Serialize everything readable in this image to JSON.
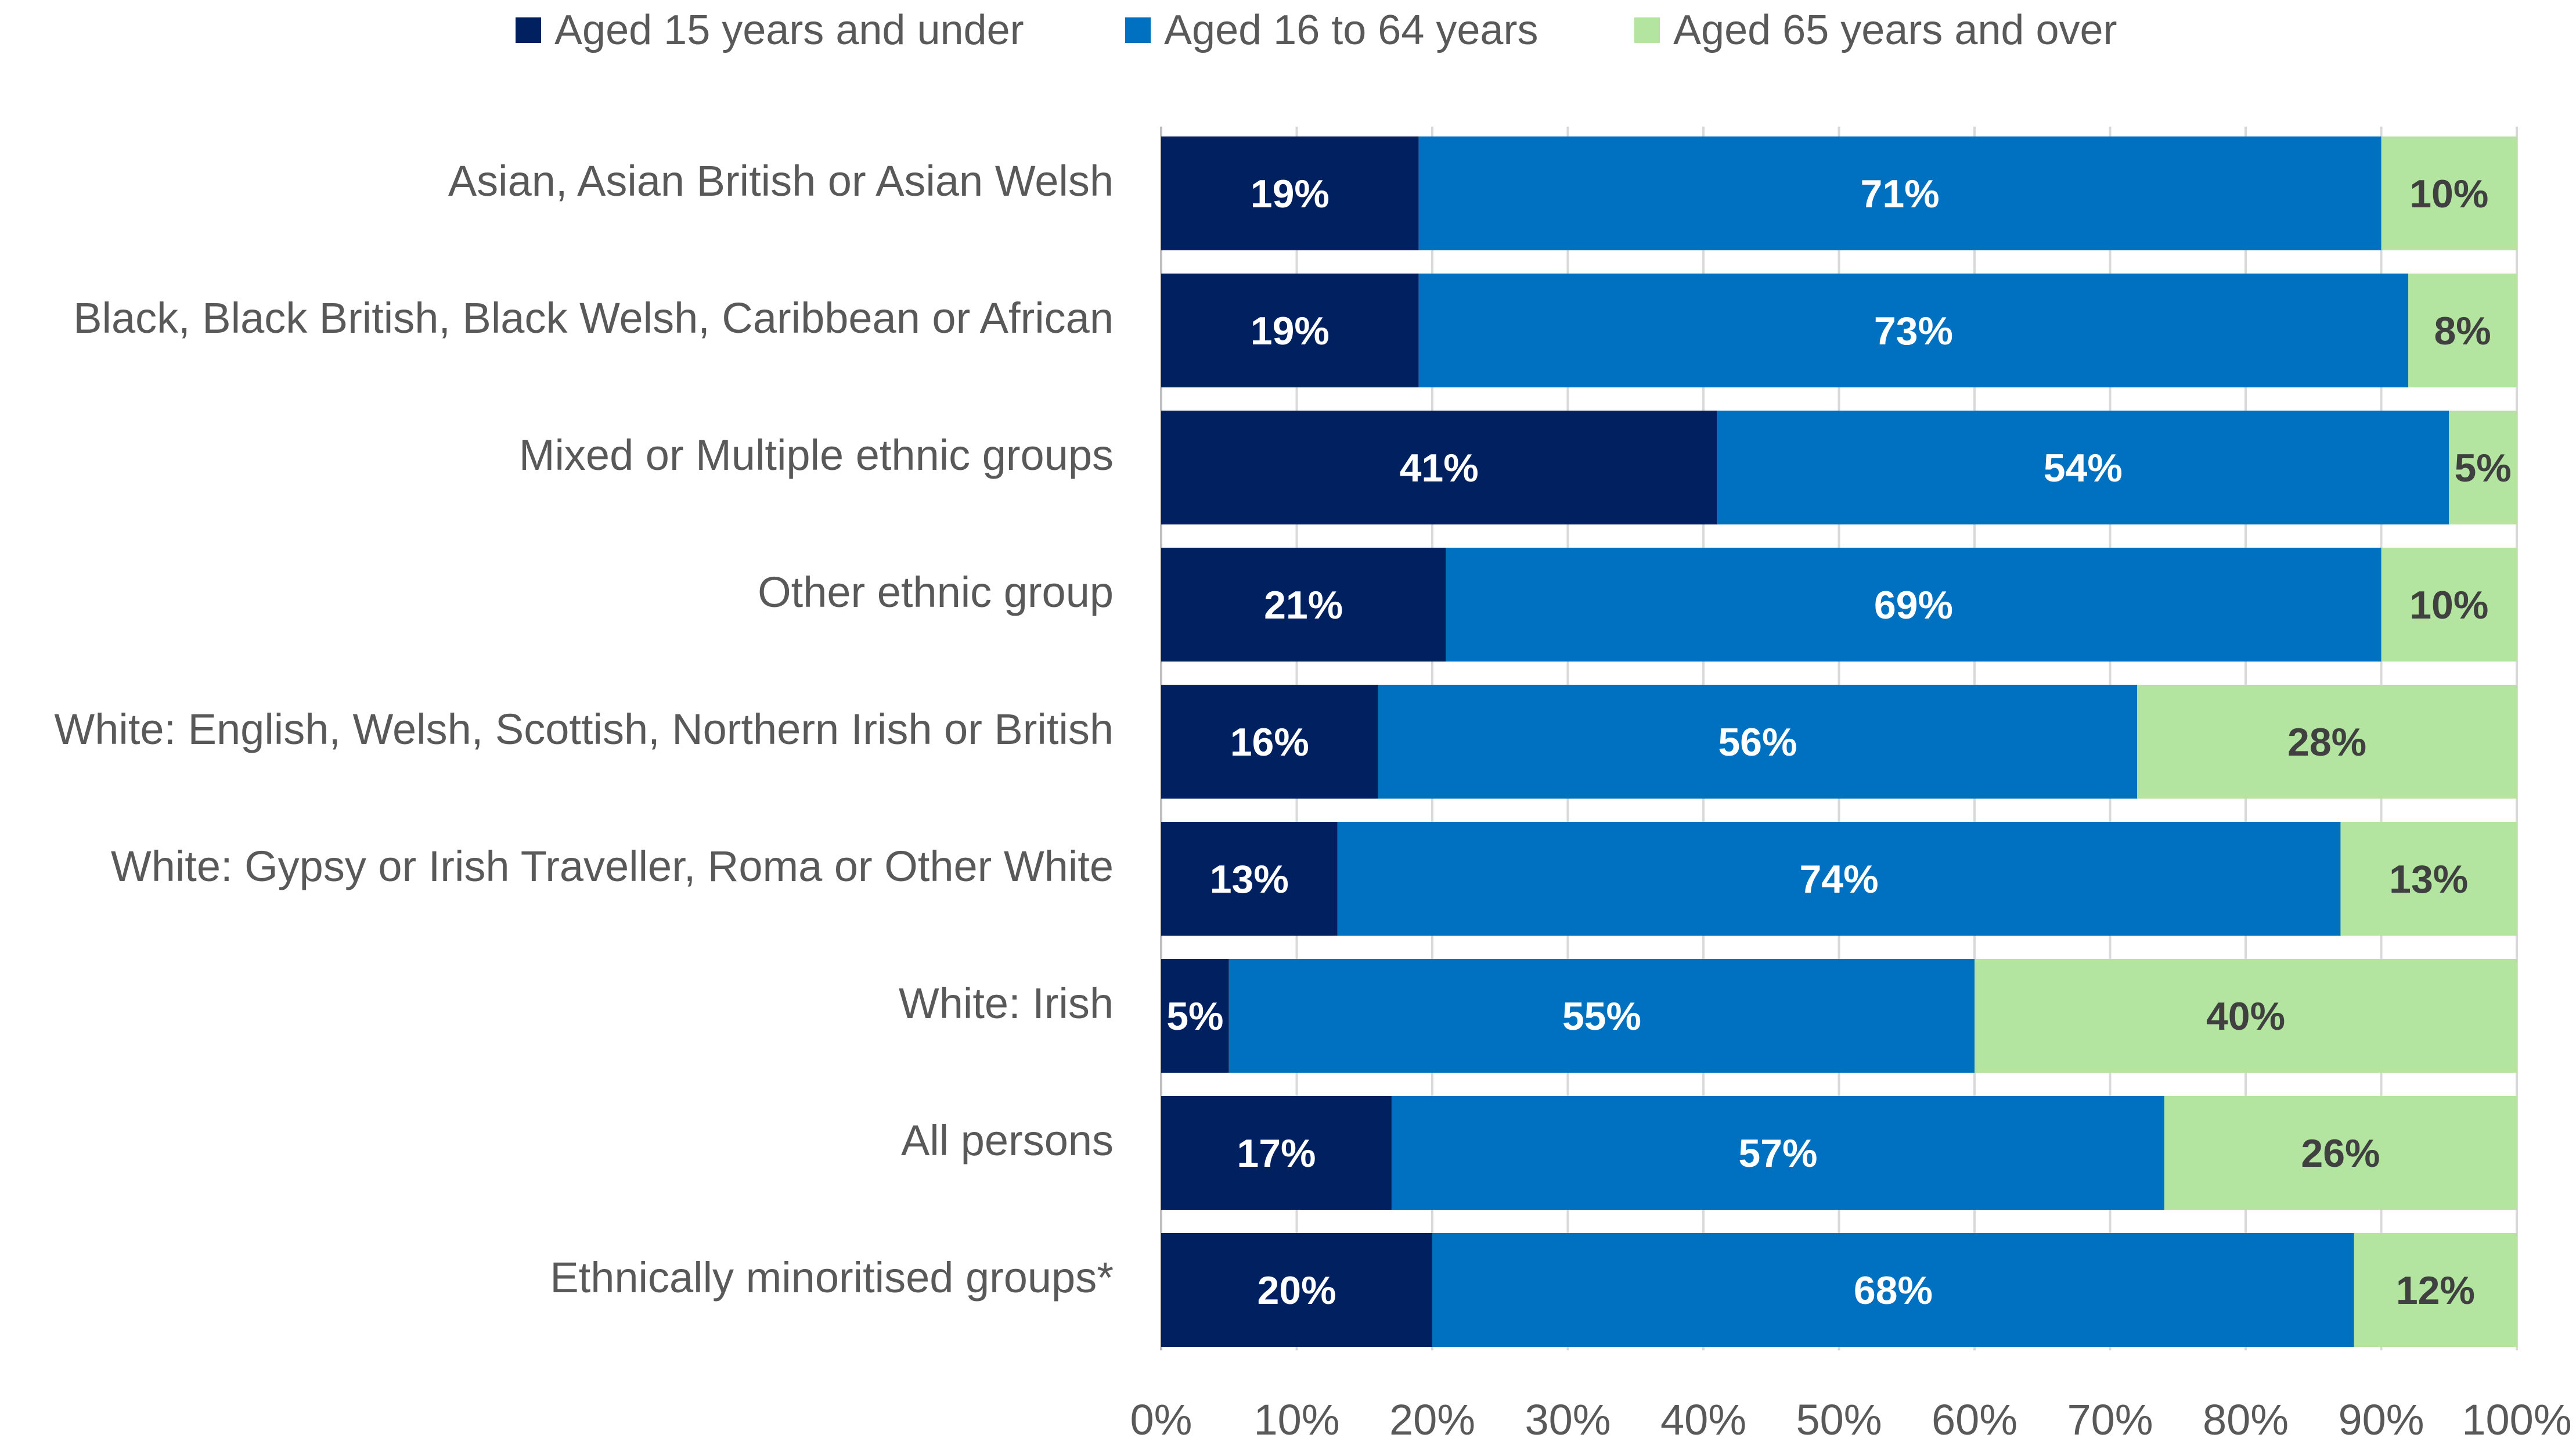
{
  "chart_data": {
    "type": "bar",
    "orientation": "horizontal",
    "stacked": true,
    "categories": [
      "Asian, Asian British or Asian Welsh",
      "Black, Black British, Black Welsh, Caribbean or African",
      "Mixed or Multiple ethnic groups",
      "Other ethnic group",
      "White: English, Welsh, Scottish, Northern Irish or British",
      "White: Gypsy or Irish Traveller, Roma or Other White",
      "White: Irish",
      "All persons",
      "Ethnically minoritised groups*"
    ],
    "series": [
      {
        "name": "Aged 15 years and under",
        "color": "#002060",
        "label_color": "#ffffff",
        "values": [
          19,
          19,
          41,
          21,
          16,
          13,
          5,
          17,
          20
        ]
      },
      {
        "name": "Aged 16 to 64 years",
        "color": "#0070C0",
        "label_color": "#ffffff",
        "values": [
          71,
          73,
          54,
          69,
          56,
          74,
          55,
          57,
          68
        ]
      },
      {
        "name": "Aged 65 years and over",
        "color": "#B3E5A1",
        "label_color": "#404040",
        "values": [
          10,
          8,
          5,
          10,
          28,
          13,
          40,
          26,
          12
        ]
      }
    ],
    "data_labels": [
      [
        "19%",
        "71%",
        "10%"
      ],
      [
        "19%",
        "73%",
        "8%"
      ],
      [
        "41%",
        "54%",
        "5%"
      ],
      [
        "21%",
        "69%",
        "10%"
      ],
      [
        "16%",
        "56%",
        "28%"
      ],
      [
        "13%",
        "74%",
        "13%"
      ],
      [
        "5%",
        "55%",
        "40%"
      ],
      [
        "17%",
        "57%",
        "26%"
      ],
      [
        "20%",
        "68%",
        "12%"
      ]
    ],
    "xlim": [
      0,
      100
    ],
    "xticks": [
      "0%",
      "10%",
      "20%",
      "30%",
      "40%",
      "50%",
      "60%",
      "70%",
      "80%",
      "90%",
      "100%"
    ],
    "grid": true,
    "legend": "top"
  }
}
